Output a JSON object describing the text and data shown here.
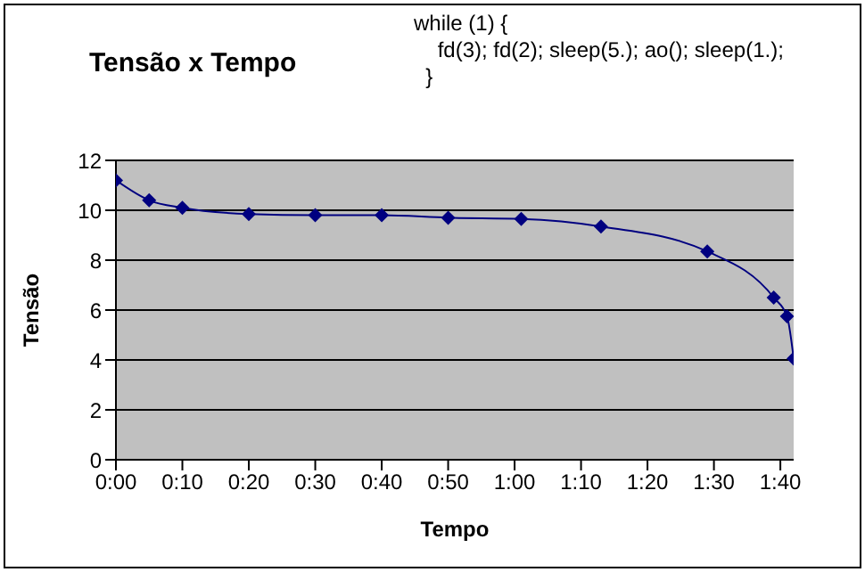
{
  "chart_data": {
    "type": "line",
    "title": "Tensão x Tempo",
    "xlabel": "Tempo",
    "ylabel": "Tensão",
    "annotations": [
      "while (1) {\n    fd(3); fd(2); sleep(5.); ao(); sleep(1.);\n  }"
    ],
    "x": [
      0,
      5,
      10,
      20,
      30,
      40,
      50,
      61,
      73,
      89,
      99,
      101,
      102
    ],
    "series": [
      {
        "color": "#000080",
        "values": [
          11.2,
          10.4,
          10.1,
          9.85,
          9.8,
          9.8,
          9.7,
          9.65,
          9.35,
          8.35,
          6.5,
          5.75,
          4.05
        ]
      }
    ],
    "xlim": [
      0,
      102
    ],
    "xticks": [
      {
        "value": 0,
        "label": "0:00"
      },
      {
        "value": 10,
        "label": "0:10"
      },
      {
        "value": 20,
        "label": "0:20"
      },
      {
        "value": 30,
        "label": "0:30"
      },
      {
        "value": 40,
        "label": "0:40"
      },
      {
        "value": 50,
        "label": "0:50"
      },
      {
        "value": 60,
        "label": "1:00"
      },
      {
        "value": 70,
        "label": "1:10"
      },
      {
        "value": 80,
        "label": "1:20"
      },
      {
        "value": 90,
        "label": "1:30"
      },
      {
        "value": 100,
        "label": "1:40"
      }
    ],
    "ylim": [
      0,
      12
    ],
    "yticks": [
      0,
      2,
      4,
      6,
      8,
      10,
      12
    ],
    "grid": "y",
    "legend": false,
    "marker": "diamond",
    "line_style": "solid"
  }
}
